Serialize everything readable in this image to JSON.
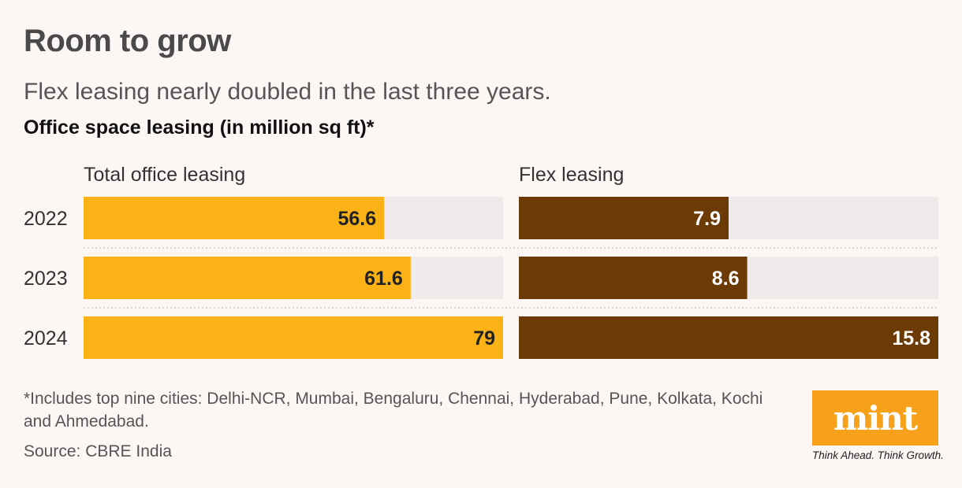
{
  "header": {
    "title": "Room to grow",
    "subtitle": "Flex leasing nearly doubled in the last three years.",
    "chart_heading": "Office space leasing (in million sq ft)*"
  },
  "chart_data": {
    "type": "bar",
    "orientation": "horizontal",
    "title": "Office space leasing (in million sq ft)*",
    "categories": [
      "2022",
      "2023",
      "2024"
    ],
    "panels": [
      {
        "name": "Total office leasing",
        "values": [
          56.6,
          61.6,
          79
        ],
        "labels": [
          "56.6",
          "61.6",
          "79"
        ],
        "max": 79,
        "color": "#fbb217",
        "track_color": "#f0eaea"
      },
      {
        "name": "Flex leasing",
        "values": [
          7.9,
          8.6,
          15.8
        ],
        "labels": [
          "7.9",
          "8.6",
          "15.8"
        ],
        "max": 15.8,
        "color": "#6b3a05",
        "track_color": "#f0eaea"
      }
    ],
    "label_colors": {
      "on_gold": "#222222",
      "on_brown": "#ffffff"
    }
  },
  "footer": {
    "footnote": "*Includes top nine cities: Delhi-NCR, Mumbai, Bengaluru, Chennai, Hyderabad, Pune, Kolkata, Kochi and Ahmedabad.",
    "source": "Source: CBRE India",
    "logo": "mint",
    "tagline": "Think Ahead. Think Growth.",
    "logo_color": "#f7a11a"
  }
}
